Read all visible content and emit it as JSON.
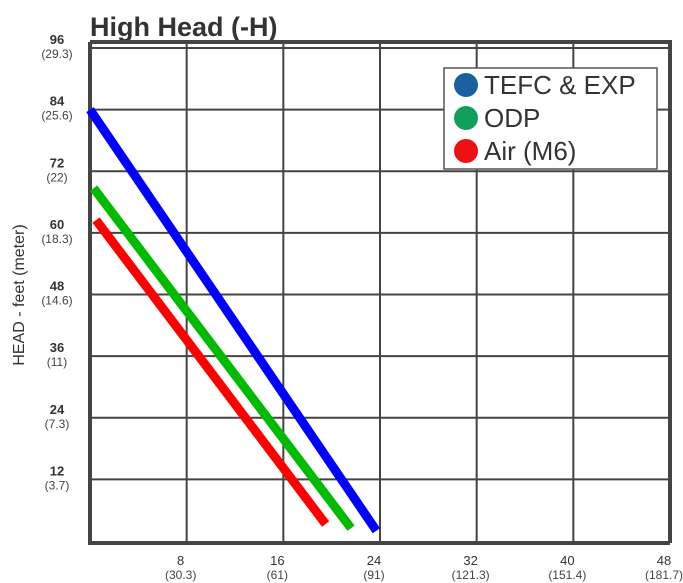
{
  "chart_data": {
    "type": "line",
    "title": "High Head (-H)",
    "y_label": "HEAD - feet (meter)",
    "xlim": [
      0,
      48
    ],
    "ylim": [
      0,
      96
    ],
    "xticks": [
      8,
      16,
      24,
      32,
      40,
      48
    ],
    "xtick_metric_labels": [
      "(30.3)",
      "(61)",
      "(91)",
      "(121.3)",
      "(151.4)",
      "(181.7)"
    ],
    "yticks": [
      12,
      24,
      36,
      48,
      60,
      72,
      84,
      96
    ],
    "ytick_metric_labels": [
      "(3.7)",
      "(7.3)",
      "(11)",
      "(14.6)",
      "(18.3)",
      "(22)",
      "(25.6)",
      "(29.3)"
    ],
    "grid": true,
    "legend": "upper right",
    "series": [
      {
        "name": "TEFC & EXP",
        "color": "#0000ff",
        "legend_color": "#1a5fa0",
        "x": [
          0,
          23.7
        ],
        "values": [
          84,
          2
        ]
      },
      {
        "name": "ODP",
        "color": "#00bb00",
        "legend_color": "#11a05a",
        "x": [
          0.3,
          21.6
        ],
        "values": [
          68.7,
          2.5
        ]
      },
      {
        "name": "Air (M6)",
        "color": "#ff0000",
        "legend_color": "#ee1111",
        "x": [
          0.5,
          19.5
        ],
        "values": [
          62.5,
          3.3
        ]
      }
    ]
  }
}
